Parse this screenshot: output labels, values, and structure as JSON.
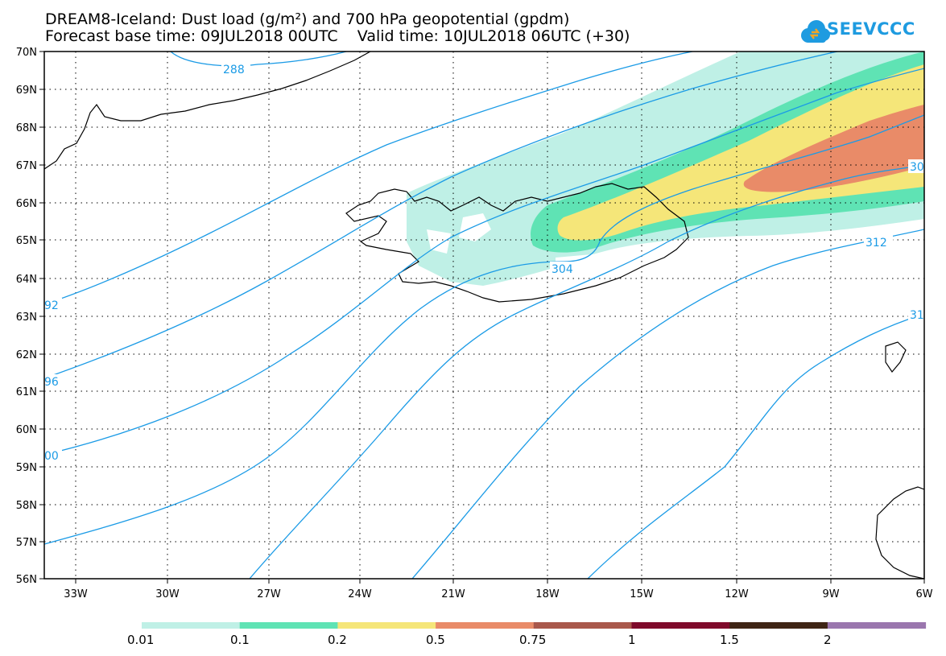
{
  "header": {
    "title_line1": "DREAM8-Iceland: Dust load (g/m²) and 700 hPa geopotential (gpdm)",
    "title_line2": "Forecast base time: 09JUL2018 00UTC    Valid time: 10JUL2018 06UTC (+30)"
  },
  "logo": {
    "text": "SEEVCCC",
    "color": "#1e9be0"
  },
  "map": {
    "lat_labels": [
      "70N",
      "69N",
      "68N",
      "67N",
      "66N",
      "65N",
      "64N",
      "63N",
      "62N",
      "61N",
      "60N",
      "59N",
      "58N",
      "57N",
      "56N"
    ],
    "lon_labels": [
      "33W",
      "30W",
      "27W",
      "24W",
      "21W",
      "18W",
      "15W",
      "12W",
      "9W",
      "6W"
    ],
    "contour_color": "#1b9be6",
    "contour_labels": [
      "288",
      "304",
      "312",
      "30",
      "92",
      "96",
      "00",
      "31"
    ]
  },
  "colorbar": {
    "colors": [
      "#bff0e6",
      "#5fe3b4",
      "#f5e679",
      "#e98b68",
      "#a9584b",
      "#7f0a2b",
      "#3f2515",
      "#9a76ae"
    ],
    "labels": [
      "0.01",
      "0.1",
      "0.2",
      "0.5",
      "0.75",
      "1",
      "1.5",
      "2"
    ]
  }
}
